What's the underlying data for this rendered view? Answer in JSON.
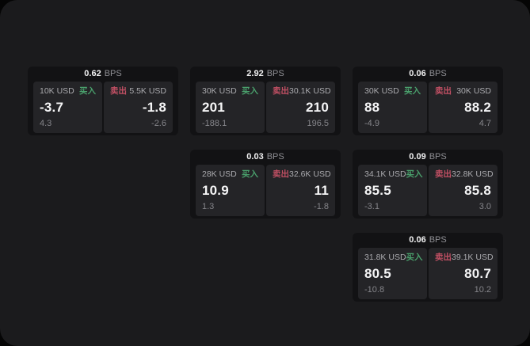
{
  "labels": {
    "unit": "BPS",
    "buy": "买入",
    "sell": "卖出"
  },
  "colors": {
    "container_bg": "#1b1b1d",
    "card_bg": "#121214",
    "panel_bg": "#242427",
    "buy_green": "#4aa06c",
    "sell_red": "#c25064",
    "value_white": "#f5f5f6",
    "muted_gray": "#85858a"
  },
  "cards": [
    {
      "bps": "0.62",
      "buy": {
        "amount": "10K USD",
        "value": "-3.7",
        "delta": "4.3"
      },
      "sell": {
        "amount": "5.5K USD",
        "value": "-1.8",
        "delta": "-2.6"
      }
    },
    {
      "bps": "2.92",
      "buy": {
        "amount": "30K USD",
        "value": "201",
        "delta": "-188.1"
      },
      "sell": {
        "amount": "30.1K USD",
        "value": "210",
        "delta": "196.5"
      }
    },
    {
      "bps": "0.06",
      "buy": {
        "amount": "30K USD",
        "value": "88",
        "delta": "-4.9"
      },
      "sell": {
        "amount": "30K USD",
        "value": "88.2",
        "delta": "4.7"
      }
    },
    {
      "bps": "0.03",
      "buy": {
        "amount": "28K USD",
        "value": "10.9",
        "delta": "1.3"
      },
      "sell": {
        "amount": "32.6K USD",
        "value": "11",
        "delta": "-1.8"
      }
    },
    {
      "bps": "0.09",
      "buy": {
        "amount": "34.1K USD",
        "value": "85.5",
        "delta": "-3.1"
      },
      "sell": {
        "amount": "32.8K USD",
        "value": "85.8",
        "delta": "3.0"
      }
    },
    {
      "bps": "0.06",
      "buy": {
        "amount": "31.8K USD",
        "value": "80.5",
        "delta": "-10.8"
      },
      "sell": {
        "amount": "39.1K USD",
        "value": "80.7",
        "delta": "10.2"
      }
    }
  ]
}
